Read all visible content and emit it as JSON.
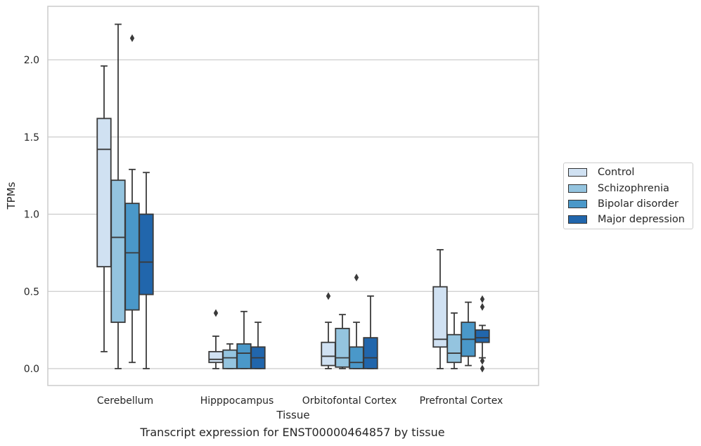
{
  "chart_data": {
    "type": "box",
    "title": "",
    "caption": "Transcript expression for ENST00000464857 by tissue",
    "xlabel": "Tissue",
    "ylabel": "TPMs",
    "ylim": [
      -0.11,
      2.35
    ],
    "yticks": [
      "0.0",
      "0.5",
      "1.0",
      "1.5",
      "2.0"
    ],
    "ytick_values": [
      0,
      0.5,
      1.0,
      1.5,
      2.0
    ],
    "grid": "horizontal",
    "legend_position": "right",
    "categories": [
      "Cerebellum",
      "Hipppocampus",
      "Orbitofontal Cortex",
      "Prefrontal Cortex"
    ],
    "series": [
      {
        "name": "Control",
        "color": "#d0e1f2",
        "boxes": [
          {
            "whislo": 0.11,
            "q1": 0.66,
            "med": 1.42,
            "q3": 1.62,
            "whishi": 1.96,
            "fliers": []
          },
          {
            "whislo": 0.0,
            "q1": 0.04,
            "med": 0.06,
            "q3": 0.11,
            "whishi": 0.21,
            "fliers": [
              0.36
            ]
          },
          {
            "whislo": 0.0,
            "q1": 0.02,
            "med": 0.08,
            "q3": 0.17,
            "whishi": 0.3,
            "fliers": [
              0.47
            ]
          },
          {
            "whislo": 0.0,
            "q1": 0.14,
            "med": 0.19,
            "q3": 0.53,
            "whishi": 0.77,
            "fliers": []
          }
        ]
      },
      {
        "name": "Schizophrenia",
        "color": "#94c4df",
        "boxes": [
          {
            "whislo": 0.0,
            "q1": 0.3,
            "med": 0.85,
            "q3": 1.22,
            "whishi": 2.23,
            "fliers": []
          },
          {
            "whislo": 0.0,
            "q1": 0.0,
            "med": 0.07,
            "q3": 0.12,
            "whishi": 0.16,
            "fliers": []
          },
          {
            "whislo": 0.0,
            "q1": 0.01,
            "med": 0.07,
            "q3": 0.26,
            "whishi": 0.35,
            "fliers": []
          },
          {
            "whislo": 0.0,
            "q1": 0.04,
            "med": 0.1,
            "q3": 0.22,
            "whishi": 0.36,
            "fliers": []
          }
        ]
      },
      {
        "name": "Bipolar disorder",
        "color": "#4a98c9",
        "boxes": [
          {
            "whislo": 0.04,
            "q1": 0.38,
            "med": 0.75,
            "q3": 1.07,
            "whishi": 1.29,
            "fliers": [
              2.14
            ]
          },
          {
            "whislo": 0.0,
            "q1": 0.0,
            "med": 0.1,
            "q3": 0.16,
            "whishi": 0.37,
            "fliers": []
          },
          {
            "whislo": 0.0,
            "q1": 0.0,
            "med": 0.04,
            "q3": 0.14,
            "whishi": 0.3,
            "fliers": [
              0.59
            ]
          },
          {
            "whislo": 0.02,
            "q1": 0.08,
            "med": 0.19,
            "q3": 0.3,
            "whishi": 0.43,
            "fliers": []
          }
        ]
      },
      {
        "name": "Major depression",
        "color": "#2166ac",
        "boxes": [
          {
            "whislo": 0.0,
            "q1": 0.48,
            "med": 0.69,
            "q3": 1.0,
            "whishi": 1.27,
            "fliers": []
          },
          {
            "whislo": 0.0,
            "q1": 0.0,
            "med": 0.07,
            "q3": 0.14,
            "whishi": 0.3,
            "fliers": []
          },
          {
            "whislo": 0.0,
            "q1": 0.0,
            "med": 0.07,
            "q3": 0.2,
            "whishi": 0.47,
            "fliers": []
          },
          {
            "whislo": 0.07,
            "q1": 0.17,
            "med": 0.2,
            "q3": 0.25,
            "whishi": 0.28,
            "fliers": [
              0.45,
              0.4,
              0.05,
              0.0
            ]
          }
        ]
      }
    ]
  }
}
